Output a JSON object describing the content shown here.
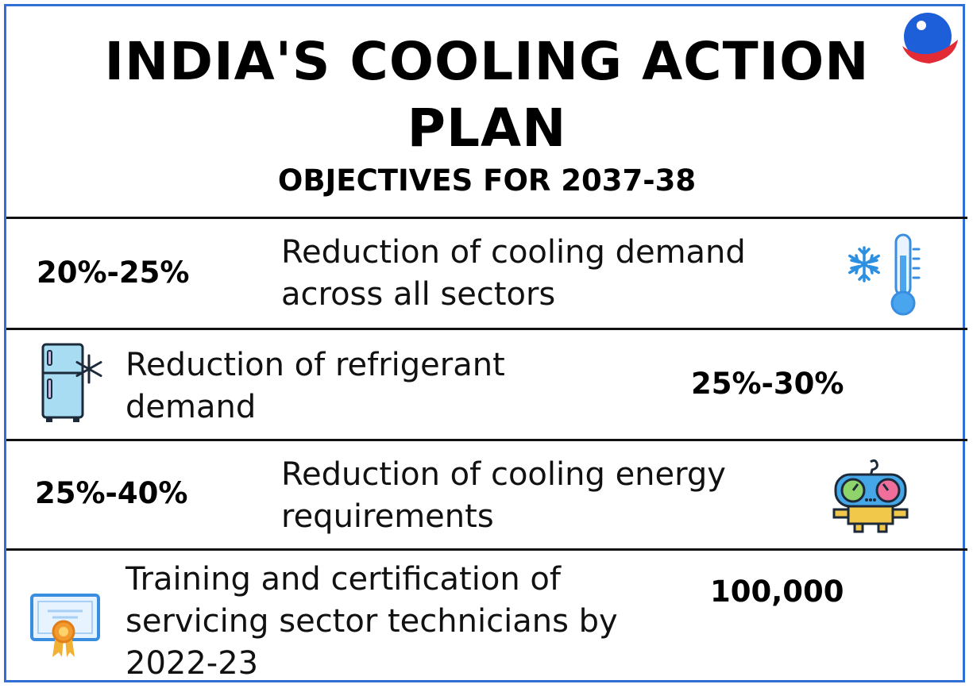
{
  "header": {
    "title": "INDIA'S COOLING ACTION PLAN",
    "subtitle": "OBJECTIVES FOR 2037-38"
  },
  "rows": [
    {
      "value": "20%-25%",
      "description": "Reduction of cooling demand across all sectors",
      "icon": "thermometer-snowflake-icon"
    },
    {
      "value": "25%-30%",
      "description": "Reduction of refrigerant demand",
      "icon": "refrigerator-icon"
    },
    {
      "value": "25%-40%",
      "description": "Reduction of cooling energy requirements",
      "icon": "pressure-gauge-icon"
    },
    {
      "value": "100,000",
      "description": "Training and certification of servicing sector technicians by 2022-23",
      "icon": "certificate-icon"
    }
  ],
  "colors": {
    "frame": "#2f6fd6",
    "divider": "#111111",
    "logo_blue": "#1c5fd8",
    "logo_red": "#e32b35"
  }
}
